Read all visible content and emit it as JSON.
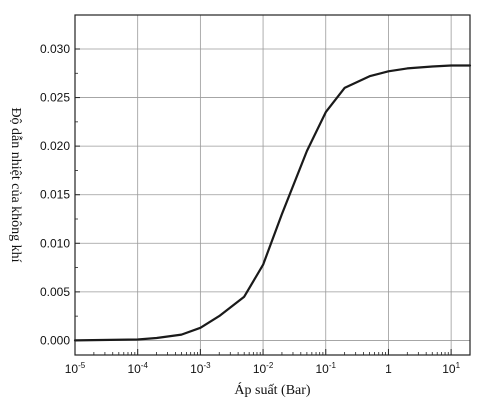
{
  "chart_data": {
    "type": "line",
    "title": "",
    "xlabel": "Áp suất (Bar)",
    "ylabel": "Độ dẫn nhiệt của không khí",
    "x_scale": "log",
    "xlim": [
      1e-05,
      20
    ],
    "ylim": [
      -0.0015,
      0.0335
    ],
    "grid": true,
    "legend": "none",
    "x_ticks": [
      {
        "base": "10",
        "exp": "-5",
        "value": 1e-05
      },
      {
        "base": "10",
        "exp": "-4",
        "value": 0.0001
      },
      {
        "base": "10",
        "exp": "-3",
        "value": 0.001
      },
      {
        "base": "10",
        "exp": "-2",
        "value": 0.01
      },
      {
        "base": "10",
        "exp": "-1",
        "value": 0.1
      },
      {
        "base": "1",
        "exp": "",
        "value": 1
      },
      {
        "base": "10",
        "exp": "1",
        "value": 10
      }
    ],
    "y_ticks": [
      "0.000",
      "0.005",
      "0.010",
      "0.015",
      "0.020",
      "0.025",
      "0.030"
    ],
    "series": [
      {
        "color": "#1a1a1a",
        "x": [
          1e-05,
          0.0001,
          0.0002,
          0.0005,
          0.001,
          0.002,
          0.005,
          0.01,
          0.02,
          0.05,
          0.1,
          0.2,
          0.5,
          1,
          2,
          5,
          10,
          20
        ],
        "y": [
          0.0,
          0.0001,
          0.00025,
          0.0006,
          0.0013,
          0.0025,
          0.0045,
          0.0078,
          0.013,
          0.0195,
          0.0235,
          0.026,
          0.0272,
          0.0277,
          0.028,
          0.0282,
          0.0283,
          0.0283
        ]
      }
    ]
  }
}
